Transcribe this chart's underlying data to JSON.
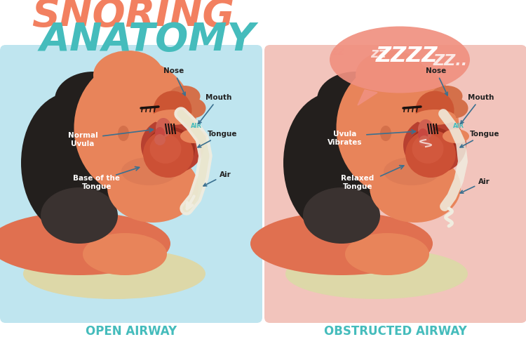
{
  "title_line1": "SNORING",
  "title_line2": "ANATOMY",
  "title_color1": "#F28060",
  "title_color2": "#45BCBC",
  "bg_color": "#FFFFFF",
  "left_bg": "#BFE5EF",
  "right_bg": "#F2C4BC",
  "left_label": "OPEN AIRWAY",
  "right_label": "OBSTRUCTED AIRWAY",
  "label_color": "#45BCBC",
  "skin_color": "#E8845A",
  "skin_light": "#EFA080",
  "skin_dark": "#D4704A",
  "neck_color": "#E07050",
  "hair_color": "#231F1D",
  "hair_mid": "#3A3230",
  "pillow_color": "#DDD8A8",
  "nose_cavity": "#CC5533",
  "mouth_cavity": "#B84030",
  "tongue_color": "#CC5035",
  "tongue_light": "#D86045",
  "throat_color": "#C84830",
  "uvula_color": "#D06050",
  "airway_white": "#F0EDE0",
  "airway_cream": "#E8E4C8",
  "air_label_color": "#45BCBC",
  "annotation_color": "#3A7090",
  "annotation_text_color": "#222222",
  "zzz_color": "#FFFFFF",
  "bubble_color": "#F09080",
  "bubble_light": "#F4B0A0"
}
